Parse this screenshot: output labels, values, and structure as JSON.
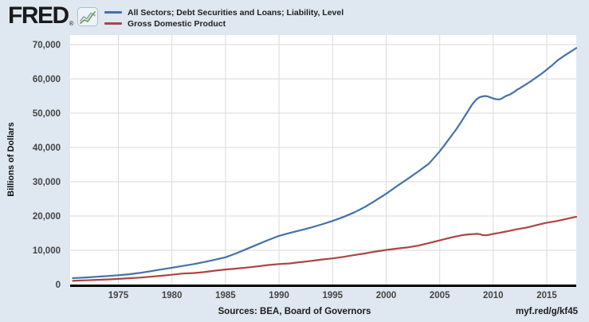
{
  "header": {
    "logo_text": "FRED",
    "registered_mark": "®",
    "legend": [
      {
        "label": "All Sectors; Debt Securities and Loans; Liability, Level",
        "color": "#4572a7"
      },
      {
        "label": "Gross Domestic Product",
        "color": "#aa4643"
      }
    ]
  },
  "footer": {
    "sources_label": "Sources: BEA, Board of Governors",
    "short_url": "myf.red/g/kf45"
  },
  "colors": {
    "background": "#dfe8f0",
    "plot_background": "#ffffff",
    "gridline": "#dadada",
    "axis_line": "#000000",
    "tick_label": "#444444",
    "series_blue": "#4572a7",
    "series_red": "#aa4643"
  },
  "chart_data": {
    "type": "line",
    "title": "",
    "xlabel": "",
    "ylabel": "Billions of Dollars",
    "ylim": [
      0,
      72800
    ],
    "xlim": [
      1970.5,
      2017.75
    ],
    "y_ticks": [
      0,
      10000,
      20000,
      30000,
      40000,
      50000,
      60000,
      70000
    ],
    "x_ticks": [
      1975,
      1980,
      1985,
      1990,
      1995,
      2000,
      2005,
      2010,
      2015
    ],
    "grid": true,
    "legend_position": "top-header",
    "series": [
      {
        "name": "All Sectors; Debt Securities and Loans; Liability, Level",
        "color": "#4572a7",
        "points": [
          [
            1970.75,
            1850
          ],
          [
            1971,
            1900
          ],
          [
            1972,
            2080
          ],
          [
            1973,
            2290
          ],
          [
            1974,
            2500
          ],
          [
            1975,
            2720
          ],
          [
            1976,
            3010
          ],
          [
            1977,
            3400
          ],
          [
            1978,
            3890
          ],
          [
            1979,
            4400
          ],
          [
            1980,
            4900
          ],
          [
            1981,
            5420
          ],
          [
            1982,
            5950
          ],
          [
            1983,
            6560
          ],
          [
            1984,
            7230
          ],
          [
            1985,
            7950
          ],
          [
            1986,
            9100
          ],
          [
            1987,
            10400
          ],
          [
            1988,
            11700
          ],
          [
            1989,
            13000
          ],
          [
            1990,
            14200
          ],
          [
            1991,
            15050
          ],
          [
            1992,
            15850
          ],
          [
            1993,
            16650
          ],
          [
            1994,
            17550
          ],
          [
            1995,
            18550
          ],
          [
            1996,
            19700
          ],
          [
            1997,
            21000
          ],
          [
            1998,
            22600
          ],
          [
            1999,
            24500
          ],
          [
            2000,
            26500
          ],
          [
            2001,
            28700
          ],
          [
            2002,
            30800
          ],
          [
            2003,
            33000
          ],
          [
            2004,
            35300
          ],
          [
            2004.5,
            37050
          ],
          [
            2005,
            38900
          ],
          [
            2005.5,
            40900
          ],
          [
            2006,
            43000
          ],
          [
            2006.5,
            45100
          ],
          [
            2007,
            47400
          ],
          [
            2007.5,
            49900
          ],
          [
            2008,
            52400
          ],
          [
            2008.25,
            53400
          ],
          [
            2008.5,
            54200
          ],
          [
            2008.75,
            54700
          ],
          [
            2009,
            54900
          ],
          [
            2009.25,
            55000
          ],
          [
            2009.5,
            54900
          ],
          [
            2009.75,
            54600
          ],
          [
            2010,
            54300
          ],
          [
            2010.25,
            54100
          ],
          [
            2010.5,
            54000
          ],
          [
            2010.75,
            54200
          ],
          [
            2011,
            54700
          ],
          [
            2011.25,
            55100
          ],
          [
            2011.5,
            55350
          ],
          [
            2012,
            56300
          ],
          [
            2012.25,
            56900
          ],
          [
            2012.5,
            57300
          ],
          [
            2013,
            58300
          ],
          [
            2013.5,
            59300
          ],
          [
            2014,
            60400
          ],
          [
            2014.5,
            61500
          ],
          [
            2015,
            62700
          ],
          [
            2015.5,
            64000
          ],
          [
            2016,
            65400
          ],
          [
            2016.5,
            66500
          ],
          [
            2017,
            67500
          ],
          [
            2017.25,
            68000
          ],
          [
            2017.5,
            68500
          ],
          [
            2017.75,
            69000
          ]
        ]
      },
      {
        "name": "Gross Domestic Product",
        "color": "#aa4643",
        "points": [
          [
            1970.75,
            1080
          ],
          [
            1971,
            1130
          ],
          [
            1972,
            1240
          ],
          [
            1973,
            1380
          ],
          [
            1974,
            1500
          ],
          [
            1975,
            1650
          ],
          [
            1976,
            1830
          ],
          [
            1977,
            2030
          ],
          [
            1978,
            2290
          ],
          [
            1979,
            2560
          ],
          [
            1980,
            2860
          ],
          [
            1981,
            3210
          ],
          [
            1982,
            3340
          ],
          [
            1983,
            3640
          ],
          [
            1984,
            4040
          ],
          [
            1985,
            4400
          ],
          [
            1986,
            4660
          ],
          [
            1987,
            4950
          ],
          [
            1988,
            5310
          ],
          [
            1989,
            5700
          ],
          [
            1990,
            5980
          ],
          [
            1991,
            6170
          ],
          [
            1992,
            6540
          ],
          [
            1993,
            6880
          ],
          [
            1994,
            7310
          ],
          [
            1995,
            7640
          ],
          [
            1996,
            8070
          ],
          [
            1997,
            8580
          ],
          [
            1998,
            9060
          ],
          [
            1999,
            9630
          ],
          [
            2000,
            10100
          ],
          [
            2001,
            10480
          ],
          [
            2002,
            10840
          ],
          [
            2003,
            11360
          ],
          [
            2004,
            12110
          ],
          [
            2005,
            12890
          ],
          [
            2006,
            13680
          ],
          [
            2007,
            14350
          ],
          [
            2007.5,
            14560
          ],
          [
            2008,
            14710
          ],
          [
            2008.5,
            14790
          ],
          [
            2008.75,
            14700
          ],
          [
            2009,
            14430
          ],
          [
            2009.25,
            14380
          ],
          [
            2009.5,
            14450
          ],
          [
            2009.75,
            14610
          ],
          [
            2010,
            14790
          ],
          [
            2010.5,
            15050
          ],
          [
            2011,
            15340
          ],
          [
            2011.5,
            15650
          ],
          [
            2012,
            16000
          ],
          [
            2012.5,
            16300
          ],
          [
            2013,
            16550
          ],
          [
            2013.5,
            16900
          ],
          [
            2014,
            17300
          ],
          [
            2014.5,
            17700
          ],
          [
            2015,
            18050
          ],
          [
            2015.5,
            18300
          ],
          [
            2016,
            18570
          ],
          [
            2016.5,
            18900
          ],
          [
            2017,
            19250
          ],
          [
            2017.5,
            19600
          ],
          [
            2017.75,
            19750
          ]
        ]
      }
    ]
  }
}
